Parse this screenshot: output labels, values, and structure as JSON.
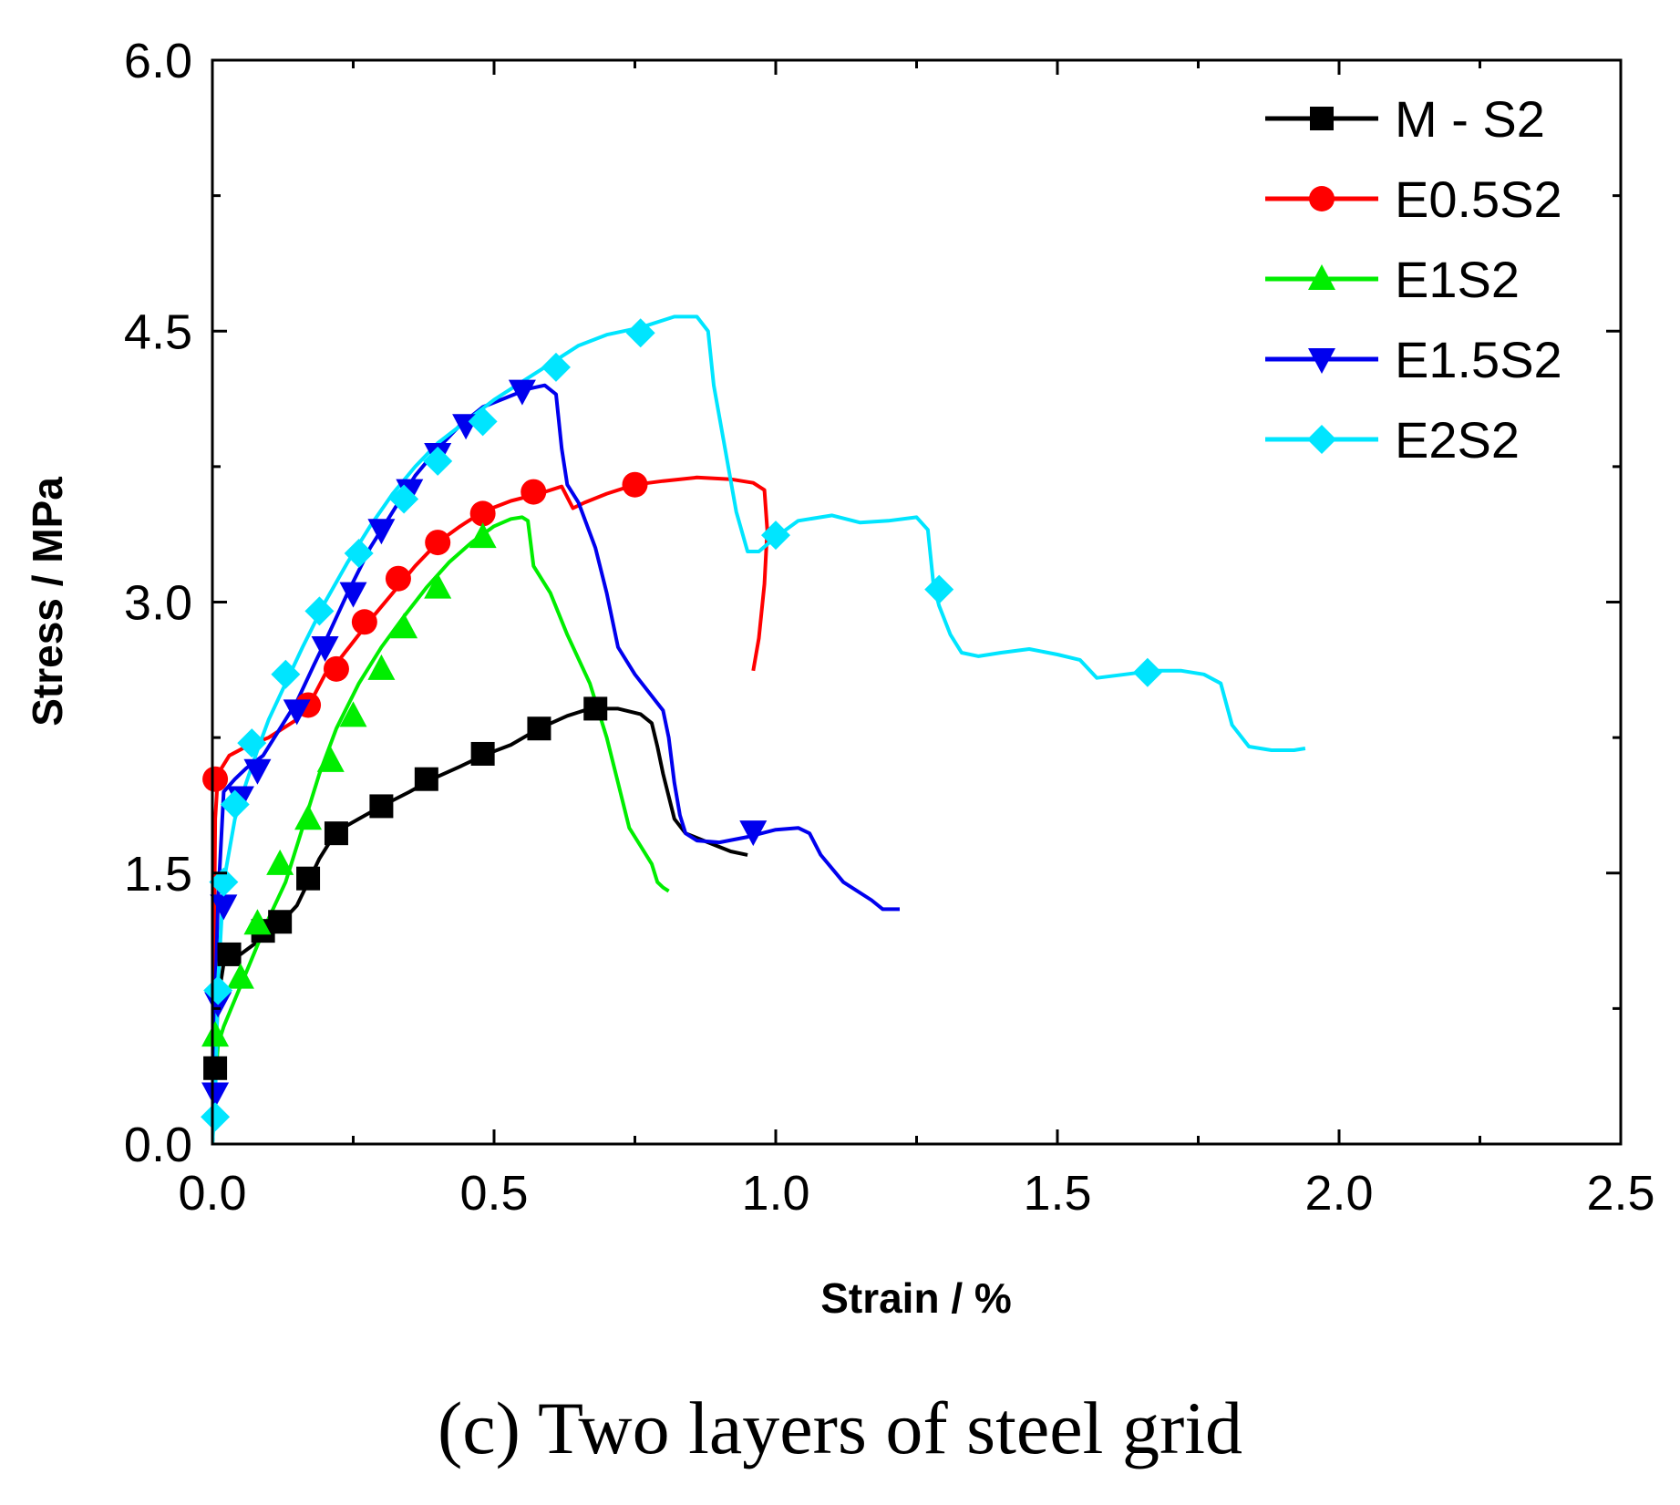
{
  "caption": "(c) Two layers of steel grid",
  "chart_data": {
    "type": "line",
    "xlabel": "Strain / %",
    "ylabel": "Stress / MPa",
    "xlim": [
      0.0,
      2.5
    ],
    "ylim": [
      0.0,
      6.0
    ],
    "xticks": [
      0.0,
      0.5,
      1.0,
      1.5,
      2.0,
      2.5
    ],
    "xtick_labels": [
      "0.0",
      "0.5",
      "1.0",
      "1.5",
      "2.0",
      "2.5"
    ],
    "yticks": [
      0.0,
      1.5,
      3.0,
      4.5,
      6.0
    ],
    "ytick_labels": [
      "0.0",
      "1.5",
      "3.0",
      "4.5",
      "6.0"
    ],
    "grid": false,
    "legend_position": "top-right",
    "series": [
      {
        "name": "M - S2",
        "color": "#000000",
        "marker": "square",
        "x": [
          0,
          0.005,
          0.01,
          0.02,
          0.03,
          0.05,
          0.08,
          0.1,
          0.12,
          0.15,
          0.17,
          0.19,
          0.22,
          0.26,
          0.3,
          0.35,
          0.39,
          0.44,
          0.48,
          0.53,
          0.58,
          0.63,
          0.67,
          0.72,
          0.76,
          0.78,
          0.79,
          0.8,
          0.82,
          0.84,
          0.88,
          0.92,
          0.95
        ],
        "y": [
          0,
          0.45,
          0.8,
          1.0,
          1.05,
          1.05,
          1.12,
          1.18,
          1.22,
          1.32,
          1.45,
          1.58,
          1.73,
          1.8,
          1.87,
          1.95,
          2.02,
          2.09,
          2.15,
          2.21,
          2.3,
          2.37,
          2.41,
          2.41,
          2.38,
          2.33,
          2.2,
          2.05,
          1.8,
          1.72,
          1.67,
          1.62,
          1.6
        ],
        "marker_x": [
          0.005,
          0.03,
          0.09,
          0.12,
          0.17,
          0.22,
          0.3,
          0.38,
          0.48,
          0.58,
          0.68
        ],
        "marker_y": [
          0.42,
          1.05,
          1.18,
          1.23,
          1.47,
          1.72,
          1.87,
          2.02,
          2.16,
          2.3,
          2.41
        ]
      },
      {
        "name": "E0.5S2",
        "color": "#ff0000",
        "marker": "circle",
        "x": [
          0,
          0.005,
          0.01,
          0.02,
          0.03,
          0.06,
          0.1,
          0.15,
          0.18,
          0.2,
          0.22,
          0.25,
          0.28,
          0.32,
          0.36,
          0.4,
          0.44,
          0.48,
          0.53,
          0.58,
          0.62,
          0.64,
          0.66,
          0.7,
          0.75,
          0.8,
          0.86,
          0.92,
          0.96,
          0.98,
          0.985,
          0.98,
          0.97,
          0.96
        ],
        "y": [
          0,
          1.8,
          2.05,
          2.1,
          2.15,
          2.2,
          2.25,
          2.35,
          2.48,
          2.6,
          2.66,
          2.78,
          2.9,
          3.05,
          3.2,
          3.33,
          3.42,
          3.5,
          3.56,
          3.6,
          3.64,
          3.52,
          3.55,
          3.6,
          3.65,
          3.67,
          3.69,
          3.68,
          3.66,
          3.62,
          3.4,
          3.1,
          2.8,
          2.62
        ],
        "marker_x": [
          0.005,
          0.17,
          0.22,
          0.27,
          0.33,
          0.4,
          0.48,
          0.57,
          0.75
        ],
        "marker_y": [
          2.02,
          2.43,
          2.63,
          2.89,
          3.13,
          3.33,
          3.49,
          3.61,
          3.65
        ]
      },
      {
        "name": "E1S2",
        "color": "#00ee00",
        "marker": "triangle-up",
        "x": [
          0,
          0.005,
          0.01,
          0.02,
          0.04,
          0.06,
          0.08,
          0.1,
          0.13,
          0.16,
          0.19,
          0.22,
          0.26,
          0.3,
          0.34,
          0.38,
          0.42,
          0.46,
          0.5,
          0.53,
          0.55,
          0.56,
          0.57,
          0.6,
          0.63,
          0.67,
          0.7,
          0.72,
          0.74,
          0.76,
          0.78,
          0.79,
          0.8,
          0.81
        ],
        "y": [
          0,
          0.35,
          0.55,
          0.65,
          0.8,
          0.95,
          1.1,
          1.25,
          1.45,
          1.75,
          2.05,
          2.3,
          2.55,
          2.75,
          2.92,
          3.08,
          3.22,
          3.33,
          3.42,
          3.46,
          3.47,
          3.45,
          3.2,
          3.05,
          2.82,
          2.55,
          2.25,
          2.0,
          1.75,
          1.65,
          1.55,
          1.45,
          1.42,
          1.4
        ],
        "marker_x": [
          0.005,
          0.05,
          0.08,
          0.12,
          0.17,
          0.21,
          0.25,
          0.3,
          0.34,
          0.4,
          0.48
        ],
        "marker_y": [
          0.6,
          0.92,
          1.22,
          1.55,
          1.8,
          2.12,
          2.37,
          2.63,
          2.86,
          3.08,
          3.36
        ]
      },
      {
        "name": "E1.5S2",
        "color": "#0000ee",
        "marker": "triangle-down",
        "x": [
          0,
          0.005,
          0.01,
          0.02,
          0.04,
          0.06,
          0.09,
          0.12,
          0.15,
          0.18,
          0.2,
          0.24,
          0.28,
          0.32,
          0.36,
          0.4,
          0.44,
          0.48,
          0.52,
          0.56,
          0.59,
          0.61,
          0.62,
          0.63,
          0.65,
          0.68,
          0.7,
          0.72,
          0.75,
          0.8,
          0.81,
          0.82,
          0.83,
          0.84,
          0.86,
          0.9,
          0.95,
          1.0,
          1.04,
          1.06,
          1.08,
          1.12,
          1.17,
          1.19,
          1.22
        ],
        "y": [
          0,
          0.8,
          1.35,
          1.95,
          2.02,
          2.08,
          2.15,
          2.3,
          2.45,
          2.65,
          2.78,
          3.05,
          3.3,
          3.5,
          3.7,
          3.85,
          3.98,
          4.08,
          4.13,
          4.18,
          4.2,
          4.15,
          3.85,
          3.65,
          3.55,
          3.3,
          3.05,
          2.75,
          2.6,
          2.4,
          2.25,
          2.0,
          1.82,
          1.72,
          1.68,
          1.67,
          1.7,
          1.74,
          1.75,
          1.72,
          1.6,
          1.45,
          1.35,
          1.3,
          1.3
        ],
        "marker_x": [
          0.005,
          0.01,
          0.02,
          0.05,
          0.08,
          0.15,
          0.2,
          0.25,
          0.3,
          0.35,
          0.4,
          0.45,
          0.55,
          0.96
        ],
        "marker_y": [
          0.28,
          0.78,
          1.32,
          1.92,
          2.07,
          2.4,
          2.75,
          3.05,
          3.4,
          3.62,
          3.82,
          3.98,
          4.17,
          1.73
        ]
      },
      {
        "name": "E2S2",
        "color": "#00e5ff",
        "marker": "diamond",
        "x": [
          0,
          0.005,
          0.01,
          0.02,
          0.04,
          0.06,
          0.08,
          0.1,
          0.13,
          0.16,
          0.2,
          0.24,
          0.28,
          0.32,
          0.36,
          0.4,
          0.45,
          0.5,
          0.55,
          0.6,
          0.65,
          0.7,
          0.76,
          0.82,
          0.86,
          0.88,
          0.89,
          0.91,
          0.93,
          0.95,
          0.97,
          1.0,
          1.04,
          1.1,
          1.15,
          1.2,
          1.25,
          1.27,
          1.28,
          1.29,
          1.31,
          1.33,
          1.36,
          1.4,
          1.45,
          1.5,
          1.54,
          1.57,
          1.62,
          1.67,
          1.72,
          1.76,
          1.79,
          1.81,
          1.84,
          1.88,
          1.92,
          1.94
        ],
        "y": [
          0,
          0.25,
          0.9,
          1.45,
          1.8,
          2.0,
          2.18,
          2.35,
          2.55,
          2.75,
          3.0,
          3.22,
          3.42,
          3.6,
          3.75,
          3.88,
          4.0,
          4.12,
          4.22,
          4.32,
          4.42,
          4.48,
          4.52,
          4.58,
          4.58,
          4.5,
          4.2,
          3.85,
          3.5,
          3.28,
          3.28,
          3.36,
          3.45,
          3.48,
          3.44,
          3.45,
          3.47,
          3.4,
          3.1,
          2.98,
          2.82,
          2.72,
          2.7,
          2.72,
          2.74,
          2.71,
          2.68,
          2.58,
          2.6,
          2.62,
          2.62,
          2.6,
          2.55,
          2.32,
          2.2,
          2.18,
          2.18,
          2.19
        ],
        "marker_x": [
          0.005,
          0.01,
          0.02,
          0.04,
          0.07,
          0.13,
          0.19,
          0.26,
          0.34,
          0.4,
          0.48,
          0.61,
          0.76,
          1.0,
          1.29,
          1.66
        ],
        "marker_y": [
          0.15,
          0.85,
          1.45,
          1.88,
          2.22,
          2.6,
          2.95,
          3.27,
          3.57,
          3.78,
          4.0,
          4.3,
          4.49,
          3.37,
          3.07,
          2.61
        ]
      }
    ]
  }
}
